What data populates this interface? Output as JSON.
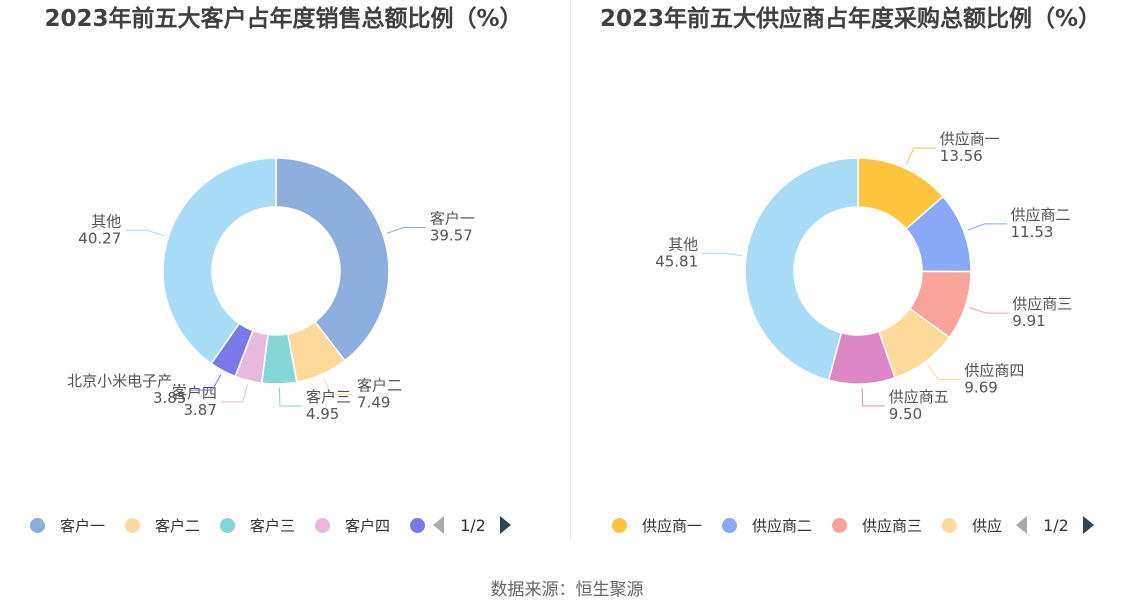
{
  "chart_data": [
    {
      "type": "pie",
      "variant": "donut",
      "title": "2023年前五大客户占年度销售总额比例（%）",
      "slices": [
        {
          "label": "客户一",
          "value": 39.57,
          "color": "#8eaedd"
        },
        {
          "label": "客户二",
          "value": 7.49,
          "color": "#fdd99a"
        },
        {
          "label": "客户三",
          "value": 4.95,
          "color": "#85d6d6"
        },
        {
          "label": "客户四",
          "value": 3.87,
          "color": "#e7b9dc"
        },
        {
          "label": "北京小米电子产...",
          "value": 3.85,
          "color": "#7979ec"
        },
        {
          "label": "其他",
          "value": 40.27,
          "color": "#a8dbf6"
        }
      ],
      "legend": {
        "items": [
          "客户一",
          "客户二",
          "客户三",
          "客户四",
          ""
        ],
        "colors": [
          "#8eaedd",
          "#fdd99a",
          "#85d6d6",
          "#e7b9dc",
          "#7979ec"
        ],
        "page": "1/2",
        "position": "bottom"
      }
    },
    {
      "type": "pie",
      "variant": "donut",
      "title": "2023年前五大供应商占年度采购总额比例（%）",
      "slices": [
        {
          "label": "供应商一",
          "value": 13.56,
          "color": "#fdc53d"
        },
        {
          "label": "供应商二",
          "value": 11.53,
          "color": "#8aaaf8"
        },
        {
          "label": "供应商三",
          "value": 9.91,
          "color": "#f9a49a"
        },
        {
          "label": "供应商四",
          "value": 9.69,
          "color": "#fdd99a"
        },
        {
          "label": "供应商五",
          "value": 9.5,
          "color": "#dd88c5"
        },
        {
          "label": "其他",
          "value": 45.81,
          "color": "#a8dbf6"
        }
      ],
      "legend": {
        "items": [
          "供应商一",
          "供应商二",
          "供应商三",
          "供应"
        ],
        "colors": [
          "#fdc53d",
          "#8aaaf8",
          "#f9a49a",
          "#fdd99a"
        ],
        "page": "1/2",
        "position": "bottom"
      }
    }
  ],
  "source": "数据来源：恒生聚源"
}
